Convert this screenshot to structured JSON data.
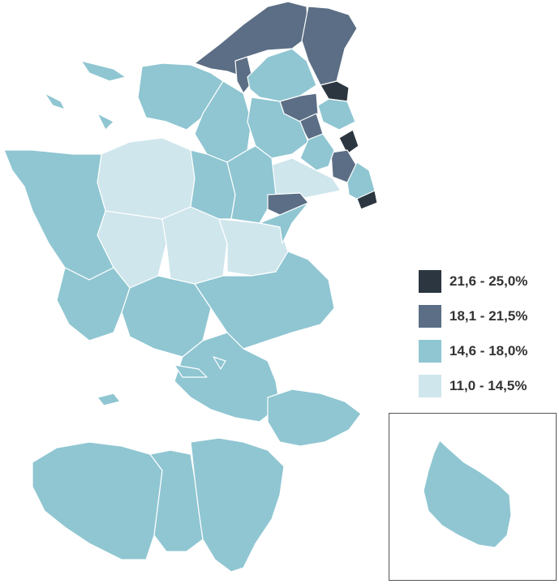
{
  "colors": {
    "class_1": "#2b3640",
    "class_2": "#5b6e85",
    "class_3": "#8fc6d2",
    "class_4": "#cfe6ec",
    "border": "#ffffff",
    "inset_border": "#555555"
  },
  "legend": {
    "items": [
      {
        "label": "21,6 - 25,0%",
        "color": "#2b3640"
      },
      {
        "label": "18,1 - 21,5%",
        "color": "#5b6e85"
      },
      {
        "label": "14,6 - 18,0%",
        "color": "#8fc6d2"
      },
      {
        "label": "11,0 - 14,5%",
        "color": "#cfe6ec"
      }
    ]
  }
}
